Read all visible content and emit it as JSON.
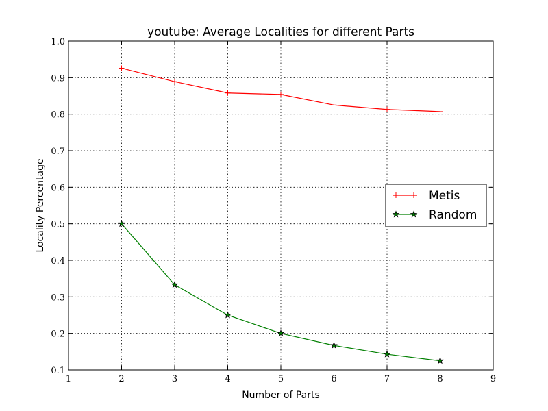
{
  "chart_data": {
    "type": "line",
    "title": "youtube: Average Localities for different Parts",
    "xlabel": "Number of Parts",
    "ylabel": "Locality Percentage",
    "xlim": [
      1,
      9
    ],
    "ylim": [
      0.1,
      1.0
    ],
    "xticks": [
      1,
      2,
      3,
      4,
      5,
      6,
      7,
      8,
      9
    ],
    "yticks": [
      0.1,
      0.2,
      0.3,
      0.4,
      0.5,
      0.6,
      0.7,
      0.8,
      0.9,
      1.0
    ],
    "xtick_labels": [
      "1",
      "2",
      "3",
      "4",
      "5",
      "6",
      "7",
      "8",
      "9"
    ],
    "ytick_labels": [
      "0.1",
      "0.2",
      "0.3",
      "0.4",
      "0.5",
      "0.6",
      "0.7",
      "0.8",
      "0.9",
      "1.0"
    ],
    "grid": true,
    "legend_position": "right",
    "x": [
      2,
      3,
      4,
      5,
      6,
      7,
      8
    ],
    "series": [
      {
        "name": "Metis",
        "color": "#ff0000",
        "marker": "plus",
        "values": [
          0.926,
          0.889,
          0.858,
          0.854,
          0.825,
          0.813,
          0.807
        ]
      },
      {
        "name": "Random",
        "color": "#007f00",
        "marker": "star",
        "values": [
          0.5,
          0.333,
          0.25,
          0.2,
          0.167,
          0.143,
          0.125
        ]
      }
    ]
  }
}
